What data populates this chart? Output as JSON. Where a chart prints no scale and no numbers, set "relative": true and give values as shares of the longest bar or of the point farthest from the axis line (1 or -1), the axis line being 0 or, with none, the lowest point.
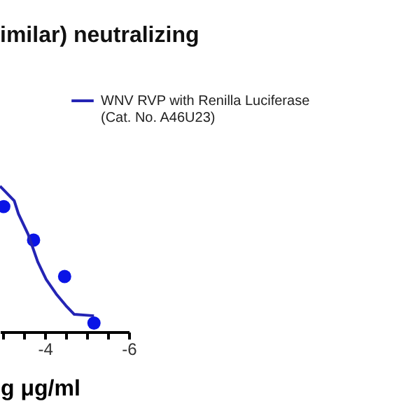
{
  "chart_data": {
    "type": "scatter",
    "title": "imilar) neutralizing",
    "xlabel": "g μg/ml",
    "relative": true,
    "tick_labels": "x",
    "xlim": [
      -2.93,
      -6
    ],
    "xticks": [
      {
        "value": -3,
        "label": null
      },
      {
        "value": -3.5,
        "label": null
      },
      -4,
      {
        "value": -4.5,
        "label": null
      },
      {
        "value": -5,
        "label": null
      },
      {
        "value": -5.5,
        "label": null
      },
      -6
    ],
    "legend": "top right",
    "grid": false,
    "series": [
      {
        "color": "#0a14e6",
        "marker": "circle",
        "x": [
          -3.02,
          -3.73,
          -4.47,
          -5.17
        ],
        "values": [
          0.86,
          0.63,
          0.38,
          0.06
        ]
      },
      {
        "type": "line",
        "name": "WNV RVP with Renilla Luciferase (Cat. No. A46U23)",
        "color": "#2424b4",
        "line_style": "solid",
        "x": [
          -2.93,
          -3.27,
          -3.37,
          -3.6,
          -3.83,
          -4.03,
          -4.27,
          -4.5,
          -4.7,
          -5.17
        ],
        "values": [
          1.0,
          0.9,
          0.81,
          0.67,
          0.48,
          0.36,
          0.26,
          0.18,
          0.12,
          0.11
        ]
      }
    ]
  }
}
